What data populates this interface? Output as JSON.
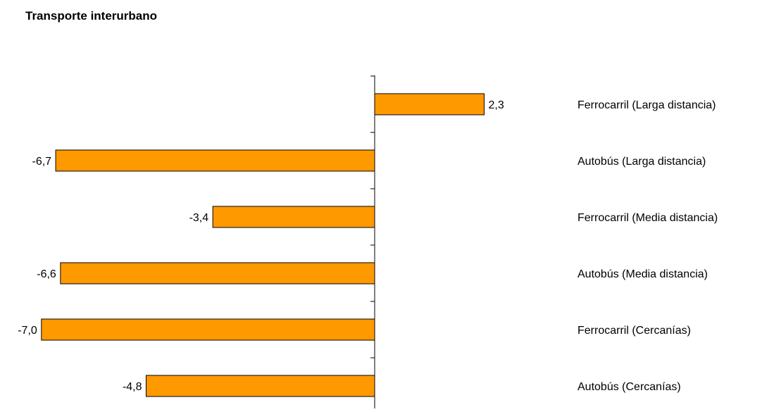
{
  "chart_data": {
    "type": "bar",
    "orientation": "horizontal",
    "title": "Transporte interurbano",
    "xlabel": "",
    "ylabel": "",
    "categories": [
      "Ferrocarril (Larga distancia)",
      "Autobús (Larga distancia)",
      "Ferrocarril (Media distancia)",
      "Autobús (Media distancia)",
      "Ferrocarril (Cercanías)",
      "Autobús (Cercanías)"
    ],
    "values": [
      2.3,
      -6.7,
      -3.4,
      -6.6,
      -7.0,
      -4.8
    ],
    "value_labels": [
      "2,3",
      "-6,7",
      "-3,4",
      "-6,6",
      "-7,0",
      "-4,8"
    ],
    "xlim": [
      -7.0,
      2.3
    ],
    "bar_color": "#FF9900",
    "bar_edge_color": "#000000",
    "grid": false,
    "legend": "none"
  }
}
